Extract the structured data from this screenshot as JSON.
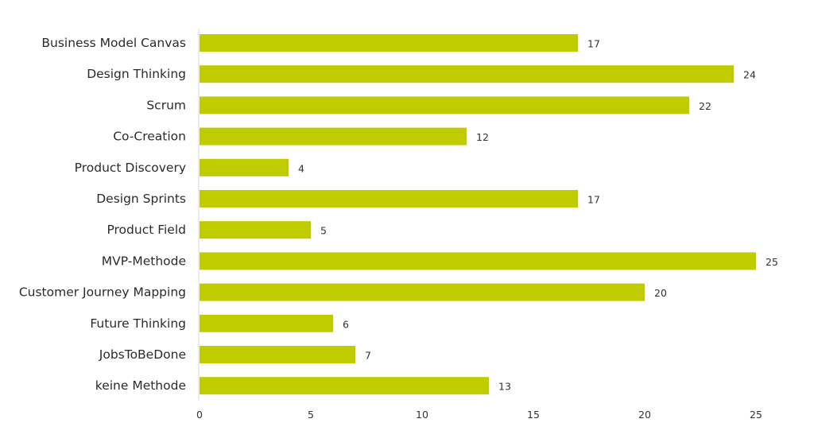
{
  "chart_data": {
    "type": "bar",
    "orientation": "horizontal",
    "categories": [
      "Business Model Canvas",
      "Design Thinking",
      "Scrum",
      "Co-Creation",
      "Product Discovery",
      "Design Sprints",
      "Product Field",
      "MVP-Methode",
      "Customer Journey Mapping",
      "Future Thinking",
      "JobsToBeDone",
      "keine Methode"
    ],
    "values": [
      17,
      24,
      22,
      12,
      4,
      17,
      5,
      25,
      20,
      6,
      7,
      13
    ],
    "xlim": [
      0,
      25
    ],
    "xticks": [
      "0",
      "5",
      "10",
      "15",
      "20",
      "25"
    ],
    "bar_color": "#bfcd00",
    "data_labels": true,
    "grid": false,
    "legend": "none"
  }
}
